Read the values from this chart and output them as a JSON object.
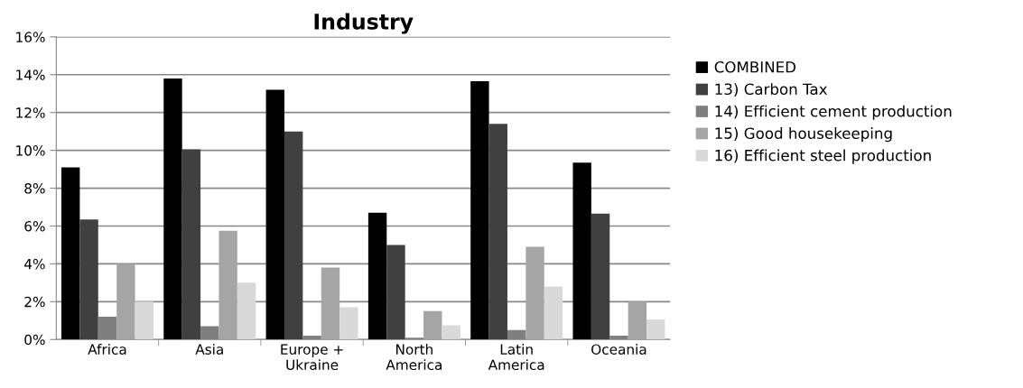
{
  "chart_data": {
    "type": "bar",
    "title": "Industry",
    "categories": [
      "Africa",
      "Asia",
      "Europe +\nUkraine",
      "North\nAmerica",
      "Latin\nAmerica",
      "Oceania"
    ],
    "series": [
      {
        "name": "COMBINED",
        "color": "#000000",
        "values": [
          9.1,
          13.8,
          13.2,
          6.7,
          13.65,
          9.35
        ]
      },
      {
        "name": "13) Carbon Tax",
        "color": "#404040",
        "values": [
          6.35,
          10.05,
          11.0,
          5.0,
          11.4,
          6.65
        ]
      },
      {
        "name": "14) Efficient cement production",
        "color": "#7f7f7f",
        "values": [
          1.2,
          0.7,
          0.2,
          0.1,
          0.5,
          0.2
        ]
      },
      {
        "name": "15) Good housekeeping",
        "color": "#a5a5a5",
        "values": [
          4.0,
          5.75,
          3.8,
          1.5,
          4.9,
          2.0
        ]
      },
      {
        "name": "16) Efficient steel production",
        "color": "#d9d9d9",
        "values": [
          2.0,
          3.0,
          1.7,
          0.75,
          2.8,
          1.05
        ]
      }
    ],
    "ylim": [
      0,
      16
    ],
    "yticks": [
      {
        "value": 0,
        "label": "0%"
      },
      {
        "value": 2,
        "label": "2%"
      },
      {
        "value": 4,
        "label": "4%"
      },
      {
        "value": 6,
        "label": "6%"
      },
      {
        "value": 8,
        "label": "8%"
      },
      {
        "value": 10,
        "label": "10%"
      },
      {
        "value": 12,
        "label": "12%"
      },
      {
        "value": 14,
        "label": "14%"
      },
      {
        "value": 16,
        "label": "16%"
      }
    ],
    "grid": "y",
    "legend": "right"
  }
}
